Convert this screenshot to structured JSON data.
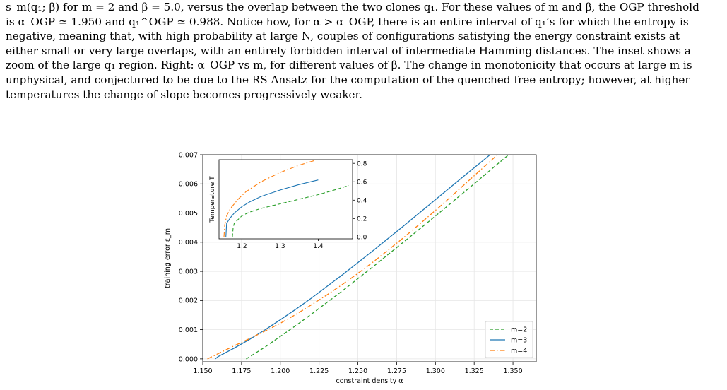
{
  "caption": {
    "lines": [
      "s_m(q₁; β) for m = 2 and β = 5.0, versus the overlap between the two clones q₁. For these values of m and β, the OGP threshold",
      "is α_OGP ≃ 1.950 and q₁^OGP ≃ 0.988. Notice how, for α > α_OGP, there is an entire interval of q₁’s for which the entropy is",
      "negative, meaning that, with high probability at large N, couples of configurations satisfying the energy constraint exists at",
      "either small or very large overlaps, with an entirely forbidden interval of intermediate Hamming distances. The inset shows a",
      "zoom of the large q₁ region. Right: α_OGP vs m, for different values of β. The change in monotonicity that occurs at large m is",
      "unphysical, and conjectured to be due to the RS Ansatz for the computation of the quenched free entropy; however, at higher",
      "temperatures the change of slope becomes progressively weaker."
    ]
  },
  "chart_data": [
    {
      "type": "line",
      "title": "",
      "xlabel": "constraint density α",
      "ylabel": "training error ε_m",
      "xlim": [
        1.15,
        1.365
      ],
      "ylim": [
        -0.0001,
        0.007
      ],
      "xticks": [
        "1.150",
        "1.175",
        "1.200",
        "1.225",
        "1.250",
        "1.275",
        "1.300",
        "1.325",
        "1.350"
      ],
      "yticks": [
        "0.000",
        "0.001",
        "0.002",
        "0.003",
        "0.004",
        "0.005",
        "0.006",
        "0.007"
      ],
      "grid": true,
      "legend": "lower-right",
      "series": [
        {
          "name": "m=2",
          "color": "#2ca02c",
          "style": "dashed",
          "x": [
            1.178,
            1.19,
            1.2,
            1.21,
            1.22,
            1.23,
            1.24,
            1.25,
            1.26,
            1.27,
            1.28,
            1.29,
            1.3,
            1.31,
            1.32,
            1.33,
            1.34,
            1.35,
            1.362
          ],
          "y": [
            0.0,
            0.0004,
            0.00077,
            0.00114,
            0.00153,
            0.00193,
            0.00233,
            0.00275,
            0.00317,
            0.0036,
            0.00403,
            0.00446,
            0.0049,
            0.00534,
            0.00578,
            0.00623,
            0.00668,
            0.00712,
            0.0077
          ]
        },
        {
          "name": "m=3",
          "color": "#1f77b4",
          "style": "solid",
          "x": [
            1.158,
            1.16,
            1.17,
            1.18,
            1.19,
            1.2,
            1.21,
            1.22,
            1.23,
            1.24,
            1.25,
            1.26,
            1.27,
            1.28,
            1.29,
            1.3,
            1.31,
            1.32,
            1.33,
            1.34
          ],
          "y": [
            0.0,
            8e-05,
            0.00036,
            0.00066,
            0.00099,
            0.00134,
            0.0017,
            0.00208,
            0.00248,
            0.00288,
            0.0033,
            0.00372,
            0.00415,
            0.00458,
            0.00502,
            0.00546,
            0.0059,
            0.00634,
            0.00677,
            0.00721
          ]
        },
        {
          "name": "m=4",
          "color": "#ff7f0e",
          "style": "dashdot",
          "x": [
            1.153,
            1.16,
            1.17,
            1.18,
            1.19,
            1.2,
            1.21,
            1.22,
            1.23,
            1.24,
            1.25,
            1.26,
            1.27,
            1.28,
            1.29,
            1.3,
            1.31,
            1.32,
            1.33,
            1.34,
            1.35,
            1.362
          ],
          "y": [
            0.0,
            0.00018,
            0.00044,
            0.00069,
            0.00095,
            0.00122,
            0.00152,
            0.00185,
            0.00219,
            0.00255,
            0.00293,
            0.00333,
            0.00375,
            0.00418,
            0.00463,
            0.00509,
            0.00556,
            0.00604,
            0.00652,
            0.007,
            0.00748,
            0.008
          ]
        }
      ]
    },
    {
      "type": "line",
      "title": "",
      "xlabel": "",
      "ylabel": "Temperature T",
      "xlim": [
        1.14,
        1.49
      ],
      "ylim": [
        -0.02,
        0.84
      ],
      "xticks": [
        "1.2",
        "1.3",
        "1.4"
      ],
      "yticks": [
        "0.0",
        "0.2",
        "0.4",
        "0.6",
        "0.8"
      ],
      "yaxis_side": "right",
      "grid": false,
      "series": [
        {
          "name": "m=2",
          "color": "#2ca02c",
          "style": "dashed",
          "x": [
            1.175,
            1.177,
            1.18,
            1.19,
            1.2,
            1.22,
            1.25,
            1.3,
            1.35,
            1.4,
            1.45,
            1.48
          ],
          "y": [
            0.0,
            0.1,
            0.15,
            0.19,
            0.23,
            0.27,
            0.31,
            0.36,
            0.41,
            0.46,
            0.52,
            0.56
          ]
        },
        {
          "name": "m=3",
          "color": "#1f77b4",
          "style": "solid",
          "x": [
            1.158,
            1.16,
            1.17,
            1.18,
            1.2,
            1.22,
            1.25,
            1.3,
            1.35,
            1.4
          ],
          "y": [
            0.0,
            0.15,
            0.21,
            0.26,
            0.33,
            0.38,
            0.44,
            0.51,
            0.57,
            0.62
          ]
        },
        {
          "name": "m=4",
          "color": "#ff7f0e",
          "style": "dashdot",
          "x": [
            1.153,
            1.155,
            1.16,
            1.17,
            1.19,
            1.21,
            1.25,
            1.3,
            1.35,
            1.39
          ],
          "y": [
            0.0,
            0.13,
            0.23,
            0.31,
            0.41,
            0.49,
            0.6,
            0.7,
            0.78,
            0.83
          ]
        }
      ]
    }
  ]
}
